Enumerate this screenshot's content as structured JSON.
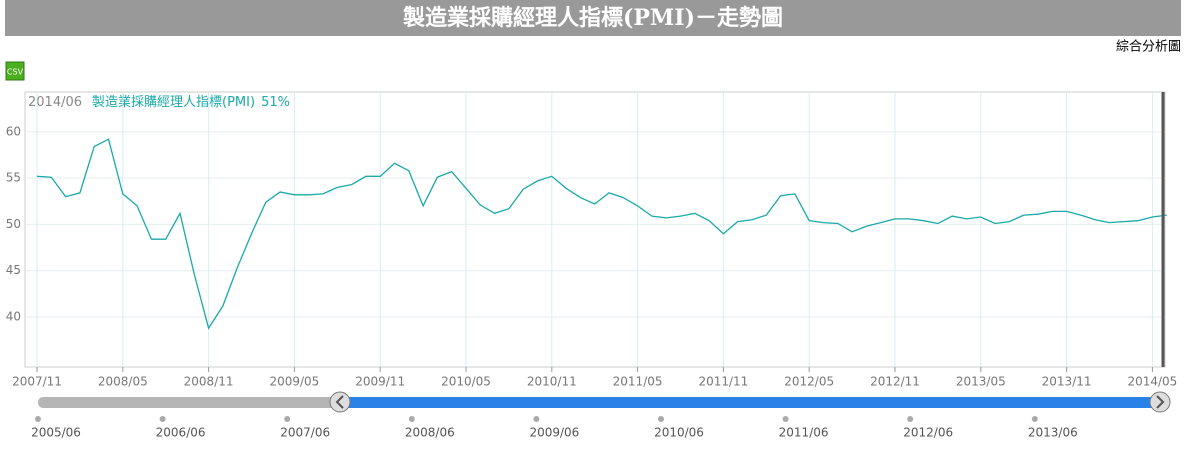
{
  "header": {
    "title": "製造業採購經理人指標(PMI)－走勢圖",
    "link": "綜合分析圖",
    "csv": "CSV"
  },
  "chart_data": {
    "type": "line",
    "tooltip": {
      "date": "2014/06",
      "label": "51%"
    },
    "categories": [
      "2007/11",
      null,
      null,
      null,
      null,
      null,
      "2008/05",
      null,
      null,
      null,
      null,
      null,
      "2008/11",
      null,
      null,
      null,
      null,
      null,
      "2009/05",
      null,
      null,
      null,
      null,
      null,
      "2009/11",
      null,
      null,
      null,
      null,
      null,
      "2010/05",
      null,
      null,
      null,
      null,
      null,
      "2010/11",
      null,
      null,
      null,
      null,
      null,
      "2011/05",
      null,
      null,
      null,
      null,
      null,
      "2011/11",
      null,
      null,
      null,
      null,
      null,
      "2012/05",
      null,
      null,
      null,
      null,
      null,
      "2012/11",
      null,
      null,
      null,
      null,
      null,
      "2013/05",
      null,
      null,
      null,
      null,
      null,
      "2013/11",
      null,
      null,
      null,
      null,
      null,
      "2014/05",
      null
    ],
    "series": [
      {
        "name": "製造業採購經理人指標(PMI)",
        "color": "#1aa9a9",
        "values": [
          55.2,
          55.1,
          53.0,
          53.4,
          58.4,
          59.2,
          53.3,
          52.0,
          48.4,
          48.4,
          51.2,
          44.6,
          38.8,
          41.2,
          45.3,
          49.0,
          52.4,
          53.5,
          53.2,
          53.2,
          53.3,
          54.0,
          54.3,
          55.2,
          55.2,
          56.6,
          55.8,
          52.0,
          55.1,
          55.7,
          53.9,
          52.1,
          51.2,
          51.7,
          53.8,
          54.7,
          55.2,
          53.9,
          52.9,
          52.2,
          53.4,
          52.9,
          52.0,
          50.9,
          50.7,
          50.9,
          51.2,
          50.4,
          49.0,
          50.3,
          50.5,
          51.0,
          53.1,
          53.3,
          50.4,
          50.2,
          50.1,
          49.2,
          49.8,
          50.2,
          50.6,
          50.6,
          50.4,
          50.1,
          50.9,
          50.6,
          50.8,
          50.1,
          50.3,
          51.0,
          51.1,
          51.4,
          51.4,
          51.0,
          50.5,
          50.2,
          50.3,
          50.4,
          50.8,
          51.0
        ]
      }
    ],
    "ylim": [
      34.6,
      64.3
    ],
    "yticks": [
      40,
      45,
      50,
      55,
      60
    ],
    "grid": true
  },
  "navigator": {
    "labels": [
      "2005/06",
      "2006/06",
      "2007/06",
      "2008/06",
      "2009/06",
      "2010/06",
      "2011/06",
      "2012/06",
      "2013/06"
    ]
  }
}
